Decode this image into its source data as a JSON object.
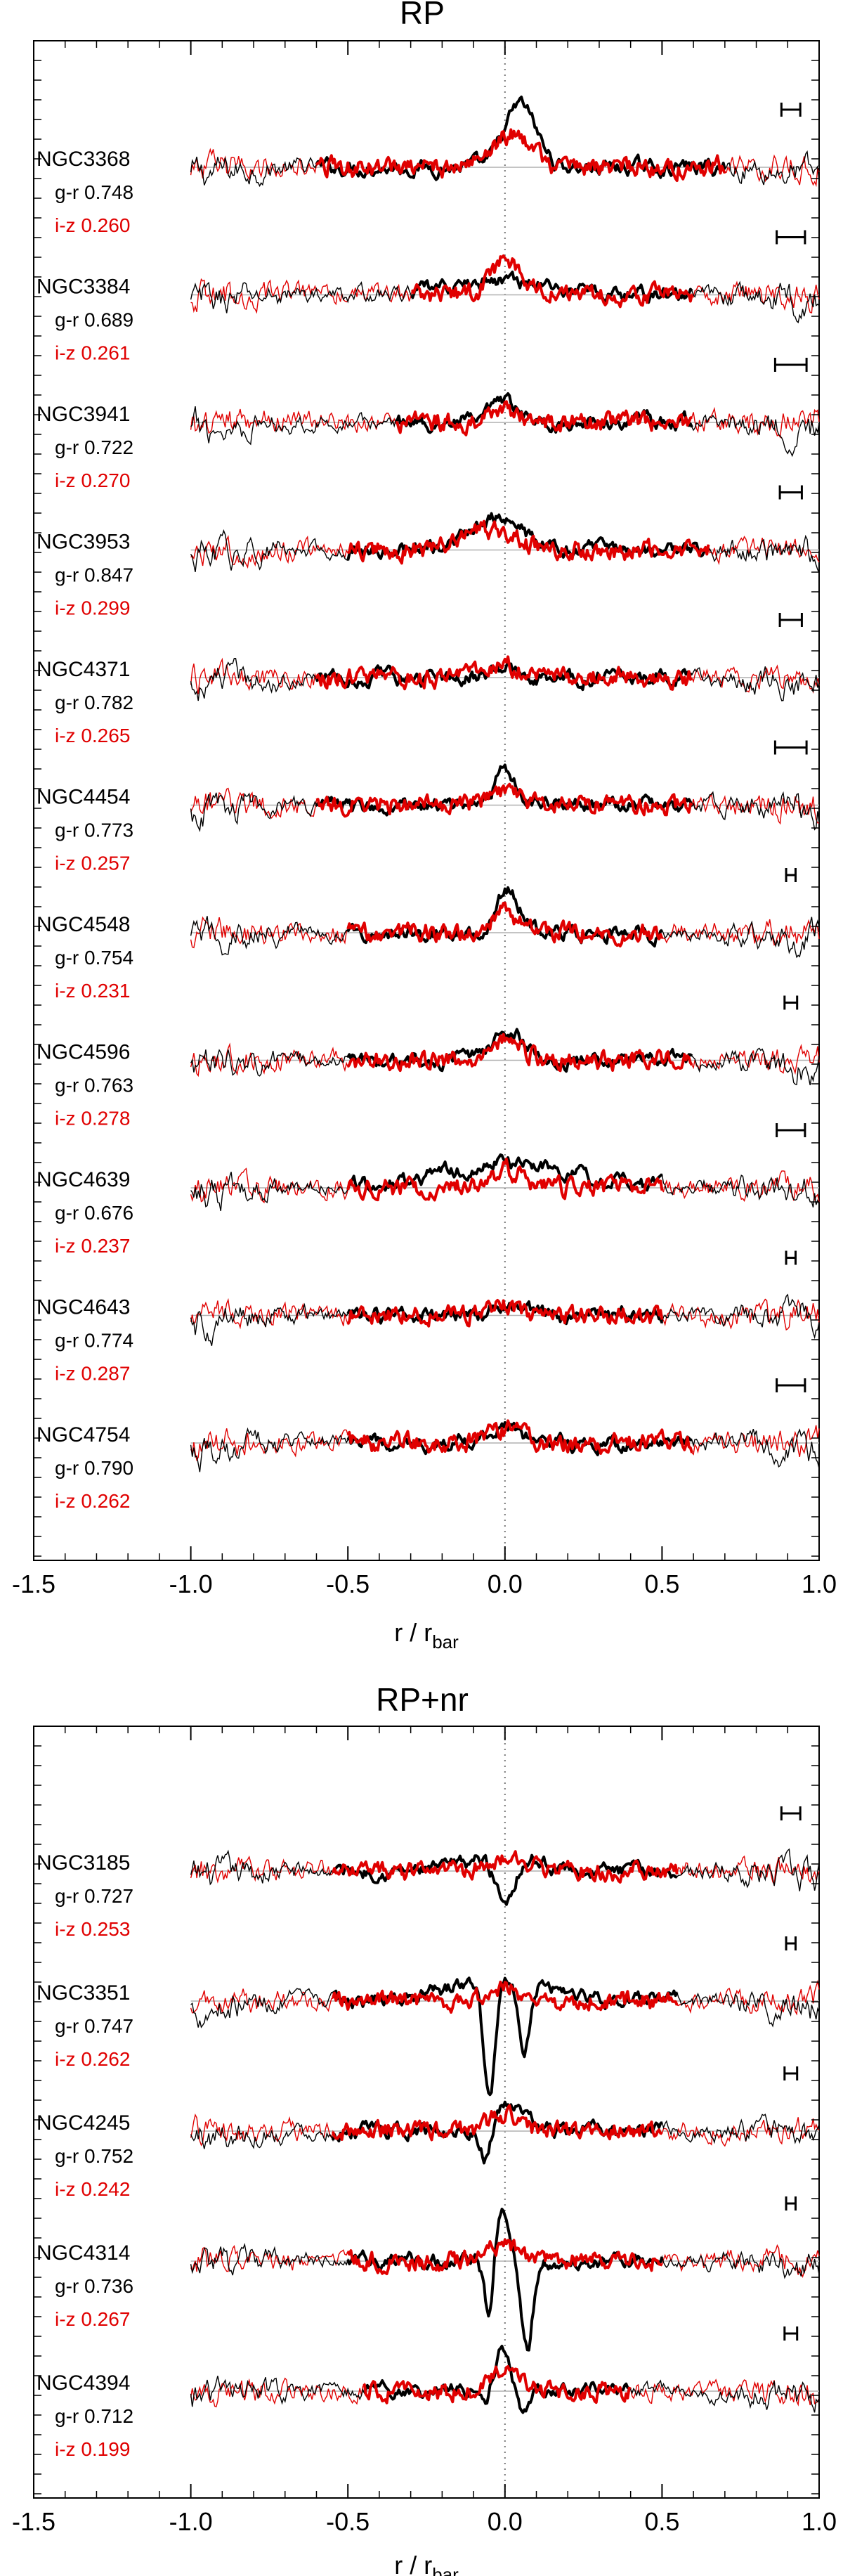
{
  "chart_data": [
    {
      "type": "line",
      "title": "RP",
      "xlabel": "r / r",
      "xlabel_subscript": "bar",
      "xlim": [
        -1.5,
        1.0
      ],
      "xticks": [
        "-1.5",
        "-1.0",
        "-0.5",
        "0.0",
        "0.5",
        "1.0"
      ],
      "reference_line": {
        "x": 0.0,
        "style": "dotted"
      },
      "colors": {
        "g_r": "#000000",
        "i_z": "#e00000",
        "baseline": "#b0b0b0"
      },
      "galaxies": [
        {
          "name": "NGC3368",
          "g_r_label": "g-r",
          "g_r": "0.748",
          "i_z_label": "i-z",
          "i_z": "0.260",
          "thick_range": [
            -0.6,
            0.7
          ],
          "error_bar_halfwidth": 0.03,
          "peak_black": {
            "center": 0.05,
            "height": 1.7,
            "width": 0.05
          },
          "peak_red": {
            "center": 0.02,
            "height": 0.9,
            "width": 0.06
          }
        },
        {
          "name": "NGC3384",
          "g_r_label": "g-r",
          "g_r": "0.689",
          "i_z_label": "i-z",
          "i_z": "0.261",
          "thick_range": [
            -0.3,
            0.6
          ],
          "error_bar_halfwidth": 0.045,
          "peak_black": {
            "center": 0.0,
            "height": 0.4,
            "width": 0.15
          },
          "peak_red": {
            "center": 0.01,
            "height": 0.95,
            "width": 0.05
          }
        },
        {
          "name": "NGC3941",
          "g_r_label": "g-r",
          "g_r": "0.722",
          "i_z_label": "i-z",
          "i_z": "0.270",
          "thick_range": [
            -0.35,
            0.6
          ],
          "error_bar_halfwidth": 0.05,
          "peak_black": {
            "center": 0.0,
            "height": 0.5,
            "width": 0.04
          },
          "peak_red": {
            "center": 0.0,
            "height": 0.35,
            "width": 0.04
          }
        },
        {
          "name": "NGC3953",
          "g_r_label": "g-r",
          "g_r": "0.847",
          "i_z_label": "i-z",
          "i_z": "0.299",
          "thick_range": [
            -0.5,
            0.65
          ],
          "error_bar_halfwidth": 0.035,
          "peak_black": {
            "center": -0.03,
            "height": 0.9,
            "width": 0.08
          },
          "peak_red": {
            "center": -0.05,
            "height": 0.55,
            "width": 0.08
          }
        },
        {
          "name": "NGC4371",
          "g_r_label": "g-r",
          "g_r": "0.782",
          "i_z_label": "i-z",
          "i_z": "0.265",
          "thick_range": [
            -0.6,
            0.6
          ],
          "error_bar_halfwidth": 0.035,
          "peak_black": {
            "center": 0.0,
            "height": 0.2,
            "width": 0.06
          },
          "peak_red": {
            "center": -0.03,
            "height": 0.35,
            "width": 0.08
          }
        },
        {
          "name": "NGC4454",
          "g_r_label": "g-r",
          "g_r": "0.773",
          "i_z_label": "i-z",
          "i_z": "0.257",
          "thick_range": [
            -0.6,
            0.6
          ],
          "error_bar_halfwidth": 0.05,
          "peak_black": {
            "center": 0.0,
            "height": 1.0,
            "width": 0.035
          },
          "peak_red": {
            "center": 0.0,
            "height": 0.3,
            "width": 0.05
          }
        },
        {
          "name": "NGC4548",
          "g_r_label": "g-r",
          "g_r": "0.754",
          "i_z_label": "i-z",
          "i_z": "0.231",
          "thick_range": [
            -0.5,
            0.5
          ],
          "error_bar_halfwidth": 0.015,
          "peak_black": {
            "center": 0.01,
            "height": 1.1,
            "width": 0.04
          },
          "peak_red": {
            "center": 0.0,
            "height": 0.6,
            "width": 0.04
          }
        },
        {
          "name": "NGC4596",
          "g_r_label": "g-r",
          "g_r": "0.763",
          "i_z_label": "i-z",
          "i_z": "0.278",
          "thick_range": [
            -0.5,
            0.6
          ],
          "error_bar_halfwidth": 0.02,
          "peak_black": {
            "center": 0.01,
            "height": 0.8,
            "width": 0.05
          },
          "peak_red": {
            "center": 0.0,
            "height": 0.6,
            "width": 0.05
          }
        },
        {
          "name": "NGC4639",
          "g_r_label": "g-r",
          "g_r": "0.676",
          "i_z_label": "i-z",
          "i_z": "0.237",
          "thick_range": [
            -0.5,
            0.5
          ],
          "error_bar_halfwidth": 0.045,
          "peak_black": {
            "center": 0.0,
            "height": 0.7,
            "width": 0.2
          },
          "peak_red": {
            "center": 0.0,
            "height": 0.5,
            "width": 0.06
          }
        },
        {
          "name": "NGC4643",
          "g_r_label": "g-r",
          "g_r": "0.774",
          "i_z_label": "i-z",
          "i_z": "0.287",
          "thick_range": [
            -0.5,
            0.5
          ],
          "error_bar_halfwidth": 0.015,
          "peak_black": {
            "center": 0.0,
            "height": 0.25,
            "width": 0.05
          },
          "peak_red": {
            "center": 0.0,
            "height": 0.25,
            "width": 0.05
          }
        },
        {
          "name": "NGC4754",
          "g_r_label": "g-r",
          "g_r": "0.790",
          "i_z_label": "i-z",
          "i_z": "0.262",
          "thick_range": [
            -0.5,
            0.6
          ],
          "error_bar_halfwidth": 0.045,
          "peak_black": {
            "center": 0.0,
            "height": 0.45,
            "width": 0.05
          },
          "peak_red": {
            "center": 0.0,
            "height": 0.4,
            "width": 0.06
          }
        }
      ]
    },
    {
      "type": "line",
      "title": "RP+nr",
      "xlabel": "r / r",
      "xlabel_subscript": "bar",
      "xlim": [
        -1.5,
        1.0
      ],
      "xticks": [
        "-1.5",
        "-1.0",
        "-0.5",
        "0.0",
        "0.5",
        "1.0"
      ],
      "reference_line": {
        "x": 0.0,
        "style": "dotted"
      },
      "colors": {
        "g_r": "#000000",
        "i_z": "#e00000",
        "baseline": "#b0b0b0"
      },
      "galaxies": [
        {
          "name": "NGC3185",
          "g_r_label": "g-r",
          "g_r": "0.727",
          "i_z_label": "i-z",
          "i_z": "0.253",
          "thick_range": [
            -0.55,
            0.55
          ],
          "error_bar_halfwidth": 0.03,
          "peak_black": {
            "center": 0.0,
            "height": 0.5,
            "width": 0.1
          },
          "peak_red": {
            "center": 0.0,
            "height": 0.4,
            "width": 0.06
          },
          "dips_black": [
            {
              "center": 0.0,
              "depth": 1.3,
              "width": 0.03
            }
          ]
        },
        {
          "name": "NGC3351",
          "g_r_label": "g-r",
          "g_r": "0.747",
          "i_z_label": "i-z",
          "i_z": "0.262",
          "thick_range": [
            -0.55,
            0.55
          ],
          "error_bar_halfwidth": 0.015,
          "peak_black": {
            "center": 0.0,
            "height": 0.7,
            "width": 0.15
          },
          "peak_red": {
            "center": 0.0,
            "height": 0.4,
            "width": 0.05
          },
          "dips_black": [
            {
              "center": -0.05,
              "depth": 3.5,
              "width": 0.018
            },
            {
              "center": 0.06,
              "depth": 2.0,
              "width": 0.018
            }
          ]
        },
        {
          "name": "NGC4245",
          "g_r_label": "g-r",
          "g_r": "0.752",
          "i_z_label": "i-z",
          "i_z": "0.242",
          "thick_range": [
            -0.55,
            0.5
          ],
          "error_bar_halfwidth": 0.02,
          "peak_black": {
            "center": 0.0,
            "height": 0.7,
            "width": 0.06
          },
          "peak_red": {
            "center": 0.0,
            "height": 0.45,
            "width": 0.05
          },
          "dips_black": [
            {
              "center": -0.06,
              "depth": 1.2,
              "width": 0.018
            }
          ]
        },
        {
          "name": "NGC4314",
          "g_r_label": "g-r",
          "g_r": "0.736",
          "i_z_label": "i-z",
          "i_z": "0.267",
          "thick_range": [
            -0.5,
            0.5
          ],
          "error_bar_halfwidth": 0.015,
          "peak_black": {
            "center": -0.01,
            "height": 1.6,
            "width": 0.025
          },
          "peak_red": {
            "center": 0.0,
            "height": 0.5,
            "width": 0.05
          },
          "dips_black": [
            {
              "center": -0.05,
              "depth": 1.8,
              "width": 0.015
            },
            {
              "center": 0.07,
              "depth": 2.6,
              "width": 0.018
            }
          ]
        },
        {
          "name": "NGC4394",
          "g_r_label": "g-r",
          "g_r": "0.712",
          "i_z_label": "i-z",
          "i_z": "0.199",
          "thick_range": [
            -0.45,
            0.4
          ],
          "error_bar_halfwidth": 0.02,
          "peak_black": {
            "center": -0.01,
            "height": 1.2,
            "width": 0.035
          },
          "peak_red": {
            "center": 0.0,
            "height": 0.7,
            "width": 0.04
          },
          "dips_black": [
            {
              "center": -0.06,
              "depth": 0.7,
              "width": 0.02
            },
            {
              "center": 0.05,
              "depth": 0.7,
              "width": 0.02
            }
          ]
        }
      ]
    }
  ]
}
